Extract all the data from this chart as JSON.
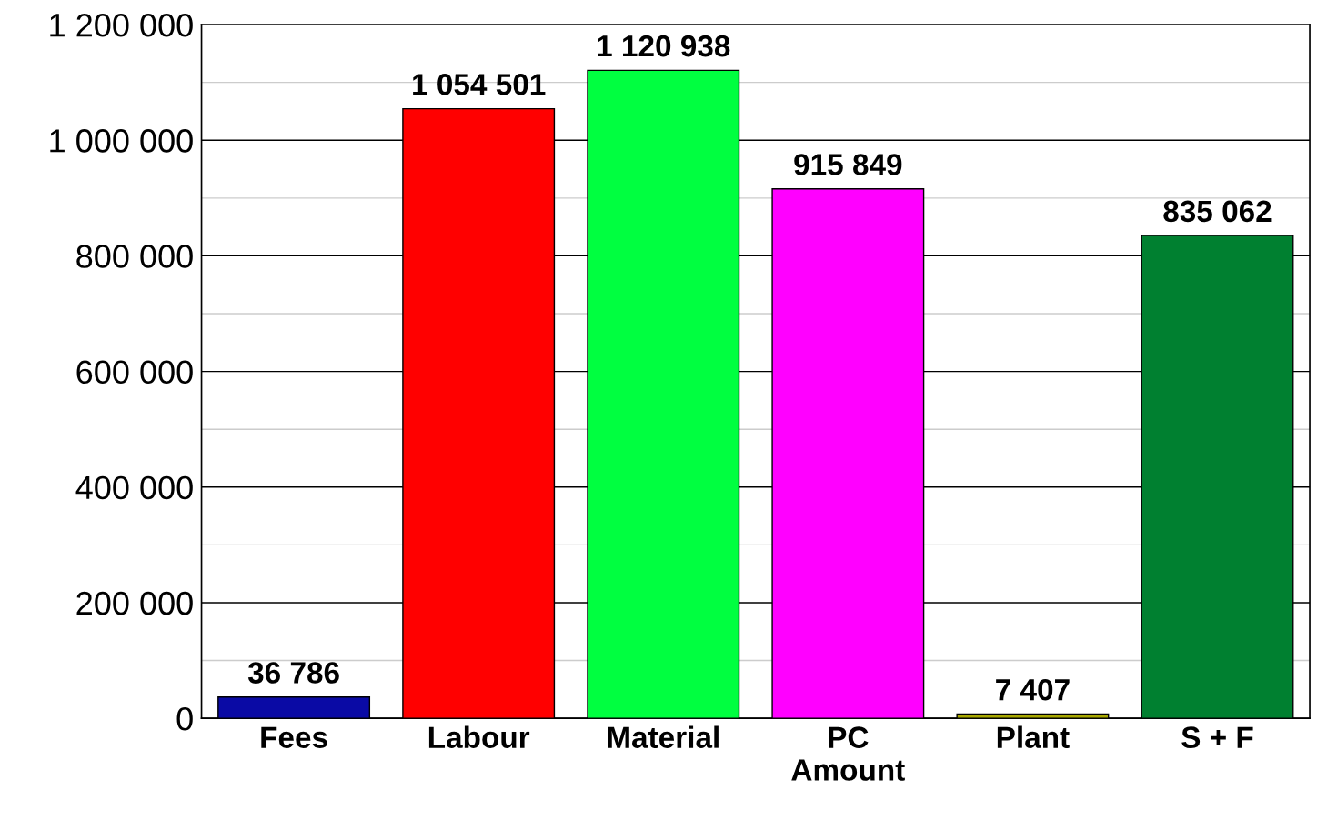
{
  "chart_data": {
    "type": "bar",
    "categories": [
      "Fees",
      "Labour",
      "Material",
      "PC\nAmount",
      "Plant",
      "S + F"
    ],
    "values": [
      36786,
      1054501,
      1120938,
      915849,
      7407,
      835062
    ],
    "colors": [
      "#0a0aa5",
      "#ff0000",
      "#00ff40",
      "#ff00ff",
      "#a8a800",
      "#008030"
    ],
    "value_labels": [
      "36 786",
      "1 054 501",
      "1 120 938",
      "915 849",
      "7 407",
      "835 062"
    ],
    "ylim": [
      0,
      1200000
    ],
    "yticks": [
      {
        "value": 0,
        "label": "0"
      },
      {
        "value": 100000,
        "label": null
      },
      {
        "value": 200000,
        "label": "200 000"
      },
      {
        "value": 300000,
        "label": null
      },
      {
        "value": 400000,
        "label": "400 000"
      },
      {
        "value": 500000,
        "label": null
      },
      {
        "value": 600000,
        "label": "600 000"
      },
      {
        "value": 700000,
        "label": null
      },
      {
        "value": 800000,
        "label": "800 000"
      },
      {
        "value": 900000,
        "label": null
      },
      {
        "value": 1000000,
        "label": "1 000 000"
      },
      {
        "value": 1100000,
        "label": null
      },
      {
        "value": 1200000,
        "label": "1 200 000"
      }
    ],
    "grid": "y"
  }
}
